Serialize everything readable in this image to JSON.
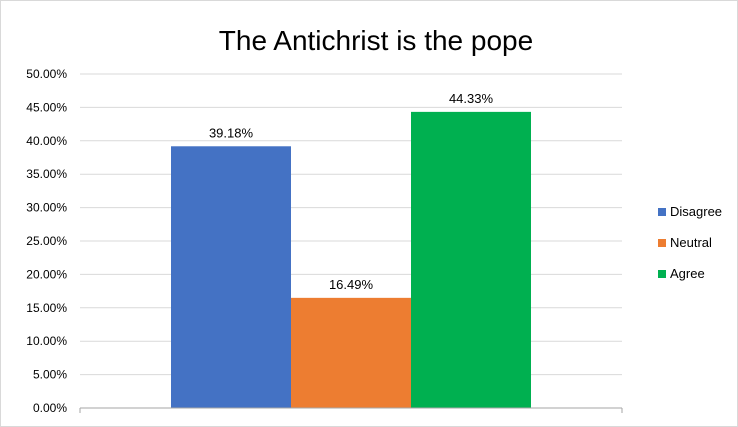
{
  "chart_data": {
    "type": "bar",
    "title": "The Antichrist is the pope",
    "xlabel": "",
    "ylabel": "",
    "ylim": [
      0,
      50
    ],
    "yticks": [
      "0.00%",
      "5.00%",
      "10.00%",
      "15.00%",
      "20.00%",
      "25.00%",
      "30.00%",
      "35.00%",
      "40.00%",
      "45.00%",
      "50.00%"
    ],
    "grid": true,
    "legend_position": "right",
    "series": [
      {
        "name": "Disagree",
        "value": 39.18,
        "label": "39.18%",
        "color": "#4472c4"
      },
      {
        "name": "Neutral",
        "value": 16.49,
        "label": "16.49%",
        "color": "#ed7d31"
      },
      {
        "name": "Agree",
        "value": 44.33,
        "label": "44.33%",
        "color": "#00b050"
      }
    ]
  }
}
